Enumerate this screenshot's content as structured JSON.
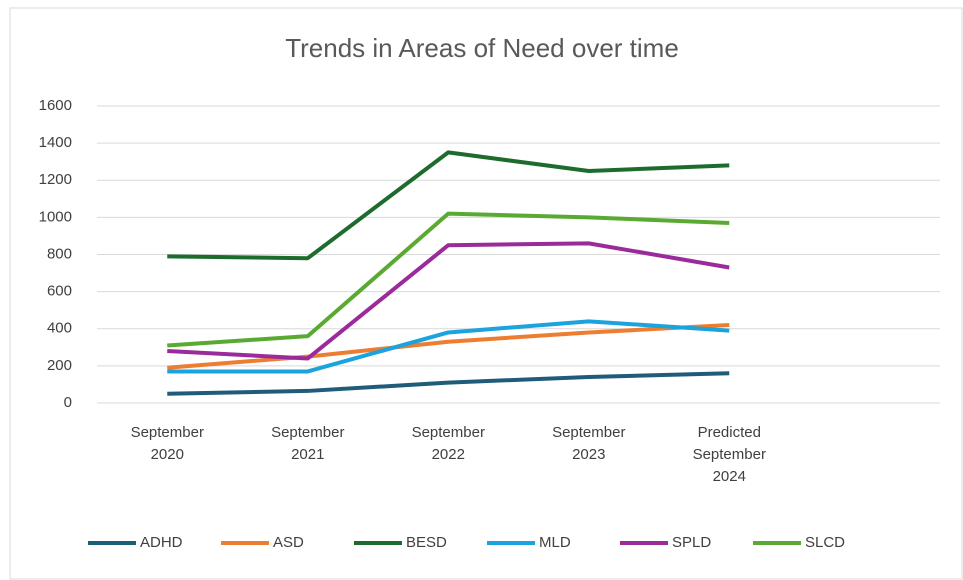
{
  "chart_data": {
    "type": "line",
    "title": "Trends in Areas of Need over time",
    "categories": [
      "September 2020",
      "September 2021",
      "September 2022",
      "September 2023",
      "Predicted September 2024",
      null
    ],
    "series": [
      {
        "name": "ADHD",
        "color": "#1f5c7a",
        "values": [
          50,
          65,
          110,
          140,
          160,
          null
        ]
      },
      {
        "name": "ASD",
        "color": "#ed7d31",
        "values": [
          190,
          250,
          330,
          380,
          420,
          null
        ]
      },
      {
        "name": "BESD",
        "color": "#1e6b2e",
        "values": [
          790,
          780,
          1350,
          1250,
          1280,
          null
        ]
      },
      {
        "name": "MLD",
        "color": "#1aa3dc",
        "values": [
          170,
          170,
          380,
          440,
          390,
          null
        ]
      },
      {
        "name": "SPLD",
        "color": "#9b2b9b",
        "values": [
          280,
          240,
          850,
          860,
          730,
          null
        ]
      },
      {
        "name": "SLCD",
        "color": "#5aaa32",
        "values": [
          310,
          360,
          1020,
          1000,
          970,
          null
        ]
      }
    ],
    "ylim": [
      0,
      1600
    ],
    "yticks": [
      0,
      200,
      400,
      600,
      800,
      1000,
      1200,
      1400,
      1600
    ],
    "grid": true,
    "legend": "bottom"
  }
}
